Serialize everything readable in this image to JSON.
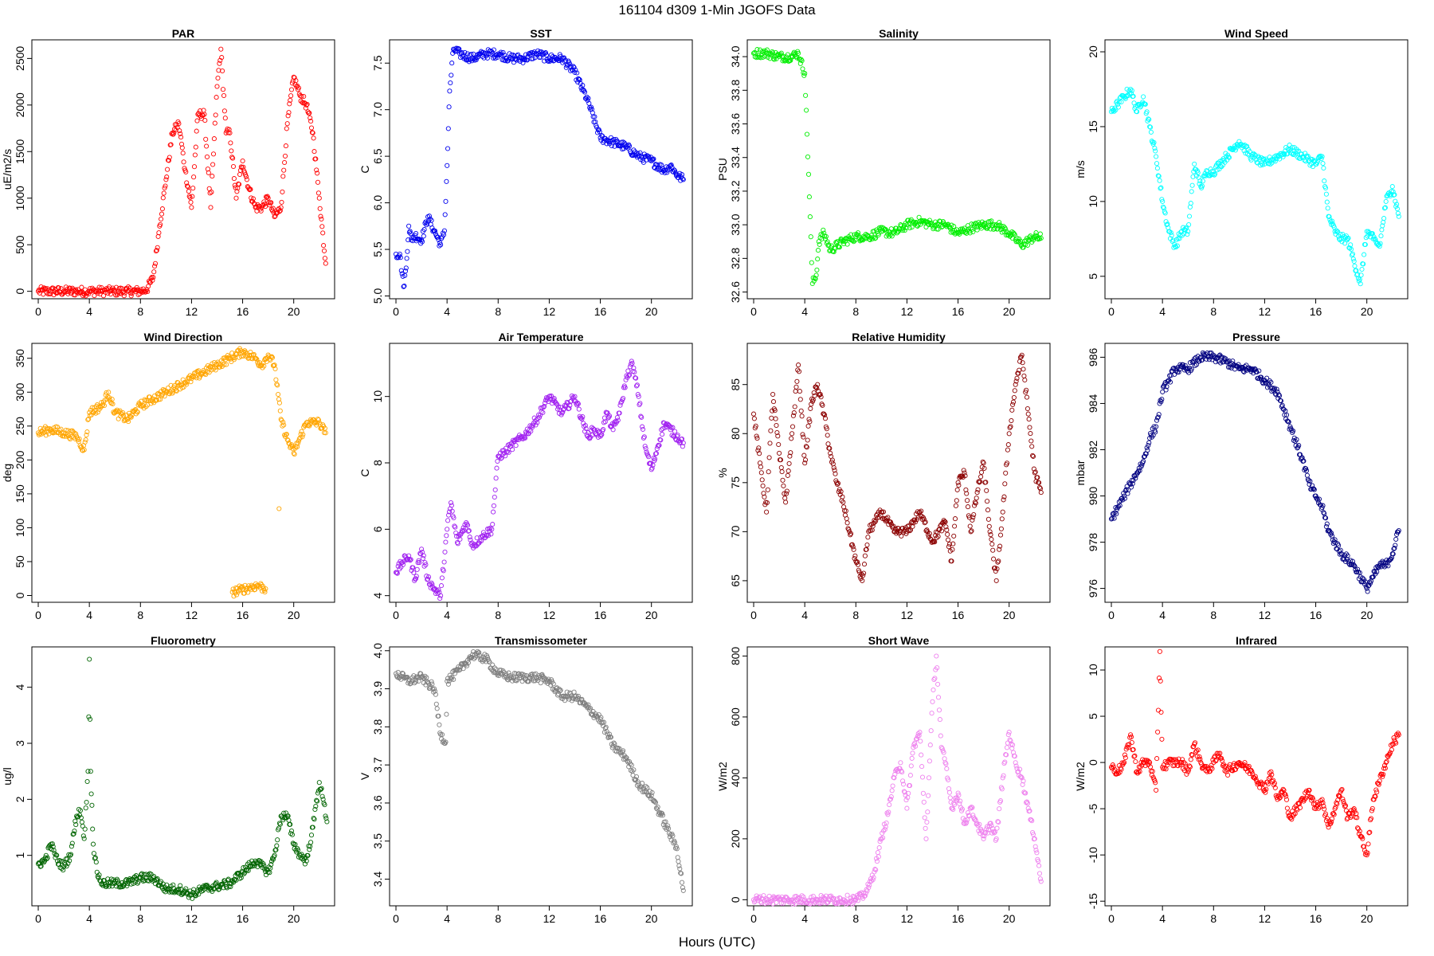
{
  "figure": {
    "title": "161104   d309   1-Min  JGOFS Data",
    "xlabel": "Hours (UTC)"
  },
  "chart_data": [
    {
      "type": "scatter",
      "title": "PAR",
      "ylabel": "uE/m2/s",
      "color": "#ff0000",
      "xlim": [
        -0.5,
        23.2
      ],
      "ylim": [
        -80,
        2700
      ],
      "x_ticks": [
        0,
        4,
        8,
        12,
        16,
        20
      ],
      "y_ticks": [
        0,
        500,
        1000,
        1500,
        2000,
        2500
      ],
      "x": [
        0,
        1,
        2,
        3,
        4,
        5,
        6,
        7,
        8,
        8.5,
        9,
        9.5,
        10,
        10.5,
        11,
        11.5,
        12,
        12.5,
        13,
        13.5,
        14,
        14.3,
        14.7,
        15,
        15.5,
        16,
        16.5,
        17,
        17.5,
        18,
        18.5,
        19,
        19.5,
        20,
        20.5,
        21,
        21.5,
        22,
        22.5
      ],
      "y": [
        0,
        0,
        0,
        0,
        0,
        0,
        0,
        0,
        0,
        20,
        150,
        700,
        1200,
        1700,
        1800,
        1300,
        900,
        1900,
        1900,
        900,
        2200,
        2600,
        1700,
        1700,
        1000,
        1400,
        1100,
        900,
        900,
        1000,
        800,
        900,
        1800,
        2300,
        2100,
        2000,
        1700,
        1000,
        300
      ]
    },
    {
      "type": "scatter",
      "title": "SST",
      "ylabel": "C",
      "color": "#0000ee",
      "xlim": [
        -0.5,
        23.2
      ],
      "ylim": [
        4.97,
        7.75
      ],
      "x_ticks": [
        0,
        4,
        8,
        12,
        16,
        20
      ],
      "y_ticks": [
        5.0,
        5.5,
        6.0,
        6.5,
        7.0,
        7.5
      ],
      "x": [
        0,
        0.3,
        0.6,
        0.8,
        1,
        1.2,
        1.5,
        2,
        2.5,
        3,
        3.5,
        3.8,
        4,
        4.2,
        4.5,
        5,
        6,
        7,
        8,
        9,
        10,
        11,
        12,
        13,
        14,
        15,
        16,
        17,
        18,
        19,
        20,
        21,
        21.5,
        22,
        22.5
      ],
      "y": [
        5.45,
        5.45,
        5.1,
        5.3,
        5.75,
        5.6,
        5.65,
        5.6,
        5.85,
        5.7,
        5.55,
        5.7,
        6.4,
        7.2,
        7.65,
        7.6,
        7.55,
        7.6,
        7.6,
        7.55,
        7.55,
        7.6,
        7.55,
        7.55,
        7.4,
        7.1,
        6.7,
        6.65,
        6.6,
        6.5,
        6.45,
        6.35,
        6.4,
        6.3,
        6.25
      ]
    },
    {
      "type": "scatter",
      "title": "Salinity",
      "ylabel": "PSU",
      "color": "#00ee00",
      "xlim": [
        -0.5,
        23.2
      ],
      "ylim": [
        32.56,
        34.1
      ],
      "x_ticks": [
        0,
        4,
        8,
        12,
        16,
        20
      ],
      "y_ticks": [
        32.6,
        32.8,
        33.0,
        33.2,
        33.4,
        33.6,
        33.8,
        34.0
      ],
      "x": [
        0,
        1,
        2,
        3,
        3.5,
        4,
        4.3,
        4.6,
        4.9,
        5.1,
        5.5,
        6,
        7,
        8,
        9,
        10,
        11,
        12,
        13,
        14,
        15,
        16,
        17,
        18,
        19,
        20,
        21,
        22,
        22.5
      ],
      "y": [
        34.02,
        34.02,
        34.0,
        34.0,
        34.02,
        33.9,
        33.3,
        32.65,
        32.7,
        32.9,
        32.95,
        32.85,
        32.9,
        32.93,
        32.93,
        32.96,
        32.95,
        33.0,
        33.02,
        33.0,
        33.0,
        32.95,
        32.98,
        33.0,
        33.0,
        32.95,
        32.88,
        32.93,
        32.92
      ]
    },
    {
      "type": "scatter",
      "title": "Wind Speed",
      "ylabel": "m/s",
      "color": "#00ffff",
      "xlim": [
        -0.5,
        23.2
      ],
      "ylim": [
        3.5,
        20.8
      ],
      "x_ticks": [
        0,
        4,
        8,
        12,
        16,
        20
      ],
      "y_ticks": [
        5,
        10,
        15,
        20
      ],
      "x": [
        0,
        0.5,
        1,
        1.5,
        2,
        2.5,
        3,
        3.5,
        4,
        4.5,
        5,
        5.5,
        6,
        6.5,
        7,
        7.5,
        8,
        9,
        10,
        11,
        12,
        13,
        14,
        15,
        16,
        16.5,
        17,
        17.5,
        18,
        18.5,
        19,
        19.5,
        20,
        20.5,
        21,
        21.5,
        22,
        22.5
      ],
      "y": [
        16,
        16.5,
        17,
        17.5,
        16,
        17,
        15,
        13,
        10,
        8,
        7,
        8,
        8,
        12.5,
        11,
        12,
        12,
        13,
        14,
        13,
        12.5,
        13,
        13.5,
        13,
        12.5,
        13,
        9,
        8,
        7.5,
        7.5,
        6,
        4.5,
        8,
        7.5,
        7,
        10,
        11,
        9
      ]
    },
    {
      "type": "scatter",
      "title": "Wind Direction",
      "ylabel": "deg",
      "color": "#ffa500",
      "xlim": [
        -0.5,
        23.2
      ],
      "ylim": [
        -10,
        372
      ],
      "x_ticks": [
        0,
        4,
        8,
        12,
        16,
        20
      ],
      "y_ticks": [
        0,
        50,
        100,
        150,
        200,
        250,
        300,
        350
      ],
      "x": [
        0,
        1,
        2,
        3,
        3.6,
        4,
        5,
        5.5,
        6,
        7,
        8,
        9,
        10,
        11,
        12,
        13,
        14,
        15,
        16,
        17,
        17.5,
        18,
        18.5,
        19,
        19.5,
        20,
        21,
        22,
        22.5,
        15.2,
        15.8,
        17.2,
        17.8
      ],
      "y": [
        240,
        245,
        240,
        235,
        215,
        270,
        280,
        300,
        270,
        260,
        280,
        290,
        300,
        310,
        320,
        330,
        340,
        350,
        360,
        350,
        340,
        355,
        340,
        260,
        230,
        210,
        255,
        255,
        240,
        5,
        8,
        15,
        10
      ]
    },
    {
      "type": "scatter",
      "title": "Air Temperature",
      "ylabel": "C",
      "color": "#a020f0",
      "xlim": [
        -0.5,
        23.2
      ],
      "ylim": [
        3.8,
        11.6
      ],
      "x_ticks": [
        0,
        4,
        8,
        12,
        16,
        20
      ],
      "y_ticks": [
        4,
        6,
        8,
        10
      ],
      "x": [
        0,
        0.5,
        1,
        1.5,
        2,
        2.5,
        3,
        3.5,
        4,
        4.3,
        4.8,
        5.5,
        6,
        6.8,
        7.5,
        8,
        8.5,
        9,
        10,
        11,
        12,
        13,
        14,
        15,
        15.5,
        16,
        16.5,
        17,
        17.5,
        18,
        18.5,
        19,
        19.5,
        20,
        20.5,
        21,
        21.5,
        22,
        22.5
      ],
      "y": [
        4.7,
        5,
        5.2,
        4.5,
        5.4,
        4.5,
        4.2,
        4,
        6,
        6.8,
        5.6,
        6.2,
        5.5,
        5.8,
        6,
        8.2,
        8.3,
        8.5,
        8.8,
        9.3,
        10,
        9.5,
        10,
        8.8,
        9,
        8.8,
        9.5,
        9,
        9.5,
        10.5,
        11,
        10,
        8.5,
        7.8,
        8.5,
        9.2,
        9,
        8.8,
        8.6
      ]
    },
    {
      "type": "scatter",
      "title": "Relative Humidity",
      "ylabel": "%",
      "color": "#8b0000",
      "xlim": [
        -0.5,
        23.2
      ],
      "ylim": [
        62.8,
        89.2
      ],
      "x_ticks": [
        0,
        4,
        8,
        12,
        16,
        20
      ],
      "y_ticks": [
        65,
        70,
        75,
        80,
        85
      ],
      "x": [
        0,
        0.5,
        1,
        1.5,
        2,
        2.5,
        3,
        3.5,
        4,
        4.5,
        5,
        5.5,
        6,
        6.5,
        7,
        7.5,
        8,
        8.5,
        9,
        9.5,
        10,
        11,
        12,
        13,
        14,
        15,
        15.5,
        16,
        16.5,
        17,
        17.5,
        18,
        18.5,
        19,
        19.5,
        20,
        20.5,
        21,
        21.5,
        22,
        22.5
      ],
      "y": [
        82,
        77,
        72,
        84,
        78,
        73,
        80,
        87,
        77,
        83,
        85,
        82,
        78,
        75,
        73,
        70,
        67,
        65,
        70,
        71,
        72,
        70,
        70,
        72,
        69,
        71,
        67,
        75,
        76,
        70,
        74,
        77,
        70,
        65,
        72,
        80,
        85,
        88,
        82,
        76,
        74
      ]
    },
    {
      "type": "scatter",
      "title": "Pressure",
      "ylabel": "mbar",
      "color": "#000080",
      "xlim": [
        -0.5,
        23.2
      ],
      "ylim": [
        975.4,
        986.6
      ],
      "x_ticks": [
        0,
        4,
        8,
        12,
        16,
        20
      ],
      "y_ticks": [
        976,
        978,
        980,
        982,
        984,
        986
      ],
      "x": [
        0,
        0.5,
        1,
        1.5,
        2,
        2.5,
        3,
        3.5,
        4,
        4.5,
        5,
        6,
        7,
        8,
        9,
        10,
        11,
        12,
        13,
        14,
        15,
        15.5,
        16,
        16.5,
        17,
        18,
        19,
        19.5,
        20,
        20.5,
        21,
        21.5,
        22,
        22.5
      ],
      "y": [
        979,
        979.5,
        980,
        980.5,
        981,
        981.5,
        982.5,
        983,
        984.5,
        985,
        985.5,
        985.5,
        986,
        986,
        985.8,
        985.5,
        985.5,
        985,
        984.5,
        983,
        981.5,
        980.5,
        980,
        979.5,
        978.5,
        977.5,
        977,
        976.5,
        976,
        976.5,
        977,
        977,
        977.5,
        978.5
      ]
    },
    {
      "type": "scatter",
      "title": "Fluorometry",
      "ylabel": "ug/l",
      "color": "#006400",
      "xlim": [
        -0.5,
        23.2
      ],
      "ylim": [
        0.1,
        4.72
      ],
      "x_ticks": [
        0,
        4,
        8,
        12,
        16,
        20
      ],
      "y_ticks": [
        1,
        2,
        3,
        4
      ],
      "x": [
        0,
        0.5,
        1,
        1.5,
        2,
        2.5,
        3,
        3.3,
        3.6,
        3.9,
        4,
        4.1,
        4.3,
        4.6,
        5,
        6,
        7,
        8,
        9,
        10,
        11,
        12,
        13,
        14,
        15,
        16,
        17,
        18,
        18.5,
        19,
        19.5,
        20,
        20.5,
        21,
        21.5,
        22,
        22.3,
        22.6
      ],
      "y": [
        0.85,
        0.9,
        1.2,
        0.9,
        0.8,
        1.0,
        1.7,
        1.8,
        1.3,
        2.5,
        4.5,
        2.5,
        1.2,
        0.7,
        0.5,
        0.5,
        0.5,
        0.6,
        0.6,
        0.4,
        0.4,
        0.3,
        0.4,
        0.45,
        0.5,
        0.7,
        0.9,
        0.7,
        1.0,
        1.7,
        1.7,
        1.2,
        1.0,
        0.9,
        1.5,
        2.3,
        2.0,
        1.6
      ]
    },
    {
      "type": "scatter",
      "title": "Transmissometer",
      "ylabel": "V",
      "color": "#7f7f7f",
      "xlim": [
        -0.5,
        23.2
      ],
      "ylim": [
        3.33,
        4.01
      ],
      "x_ticks": [
        0,
        4,
        8,
        12,
        16,
        20
      ],
      "y_ticks": [
        3.4,
        3.5,
        3.6,
        3.7,
        3.8,
        3.9,
        4.0
      ],
      "x": [
        0,
        1,
        2,
        3,
        3.5,
        3.9,
        4,
        5,
        6,
        7,
        8,
        9,
        10,
        11,
        12,
        13,
        14,
        15,
        16,
        17,
        18,
        19,
        20,
        21,
        22,
        22.5
      ],
      "y": [
        3.94,
        3.92,
        3.93,
        3.9,
        3.78,
        3.76,
        3.92,
        3.95,
        3.99,
        3.98,
        3.94,
        3.93,
        3.93,
        3.93,
        3.92,
        3.88,
        3.88,
        3.85,
        3.82,
        3.75,
        3.72,
        3.65,
        3.62,
        3.55,
        3.48,
        3.37
      ]
    },
    {
      "type": "scatter",
      "title": "Short Wave",
      "ylabel": "W/m2",
      "color": "#ee82ee",
      "xlim": [
        -0.5,
        23.2
      ],
      "ylim": [
        -20,
        830
      ],
      "x_ticks": [
        0,
        4,
        8,
        12,
        16,
        20
      ],
      "y_ticks": [
        0,
        200,
        400,
        600,
        800
      ],
      "x": [
        0,
        1,
        2,
        3,
        4,
        5,
        6,
        7,
        8,
        8.5,
        9,
        9.5,
        10,
        10.5,
        11,
        11.5,
        12,
        12.5,
        13,
        13.5,
        14,
        14.3,
        14.7,
        15,
        15.5,
        16,
        16.5,
        17,
        17.5,
        18,
        18.5,
        19,
        19.5,
        20,
        20.5,
        21,
        21.5,
        22,
        22.5
      ],
      "y": [
        0,
        0,
        0,
        0,
        0,
        0,
        0,
        0,
        0,
        10,
        40,
        100,
        200,
        280,
        400,
        450,
        300,
        500,
        550,
        200,
        650,
        800,
        500,
        450,
        300,
        350,
        250,
        300,
        250,
        200,
        250,
        200,
        400,
        550,
        450,
        400,
        300,
        200,
        60
      ]
    },
    {
      "type": "scatter",
      "title": "Infrared",
      "ylabel": "W/m2",
      "color": "#ff0000",
      "xlim": [
        -0.5,
        23.2
      ],
      "ylim": [
        -15.5,
        12.5
      ],
      "x_ticks": [
        0,
        4,
        8,
        12,
        16,
        20
      ],
      "y_ticks": [
        -15,
        -10,
        -5,
        0,
        5,
        10
      ],
      "x": [
        0,
        0.5,
        1,
        1.5,
        2,
        2.5,
        3,
        3.5,
        3.8,
        4,
        4.5,
        5,
        5.5,
        6,
        6.5,
        7,
        7.5,
        8,
        8.5,
        9,
        10,
        11,
        12,
        12.5,
        13,
        13.5,
        14,
        14.5,
        15,
        15.5,
        16,
        16.5,
        17,
        17.5,
        18,
        18.5,
        19,
        19.5,
        20,
        20.5,
        21,
        21.5,
        22,
        22.5
      ],
      "y": [
        -0.5,
        -1,
        0,
        3,
        -1,
        0,
        0,
        -3,
        12,
        -0.5,
        0,
        0,
        0,
        -1,
        2,
        0,
        -1,
        0,
        1,
        -1,
        0,
        -1,
        -3,
        -1,
        -4,
        -3,
        -6,
        -5,
        -4,
        -3,
        -5,
        -4,
        -7,
        -5,
        -3,
        -6,
        -5,
        -8,
        -10,
        -4,
        -2,
        0,
        2,
        3
      ]
    }
  ]
}
